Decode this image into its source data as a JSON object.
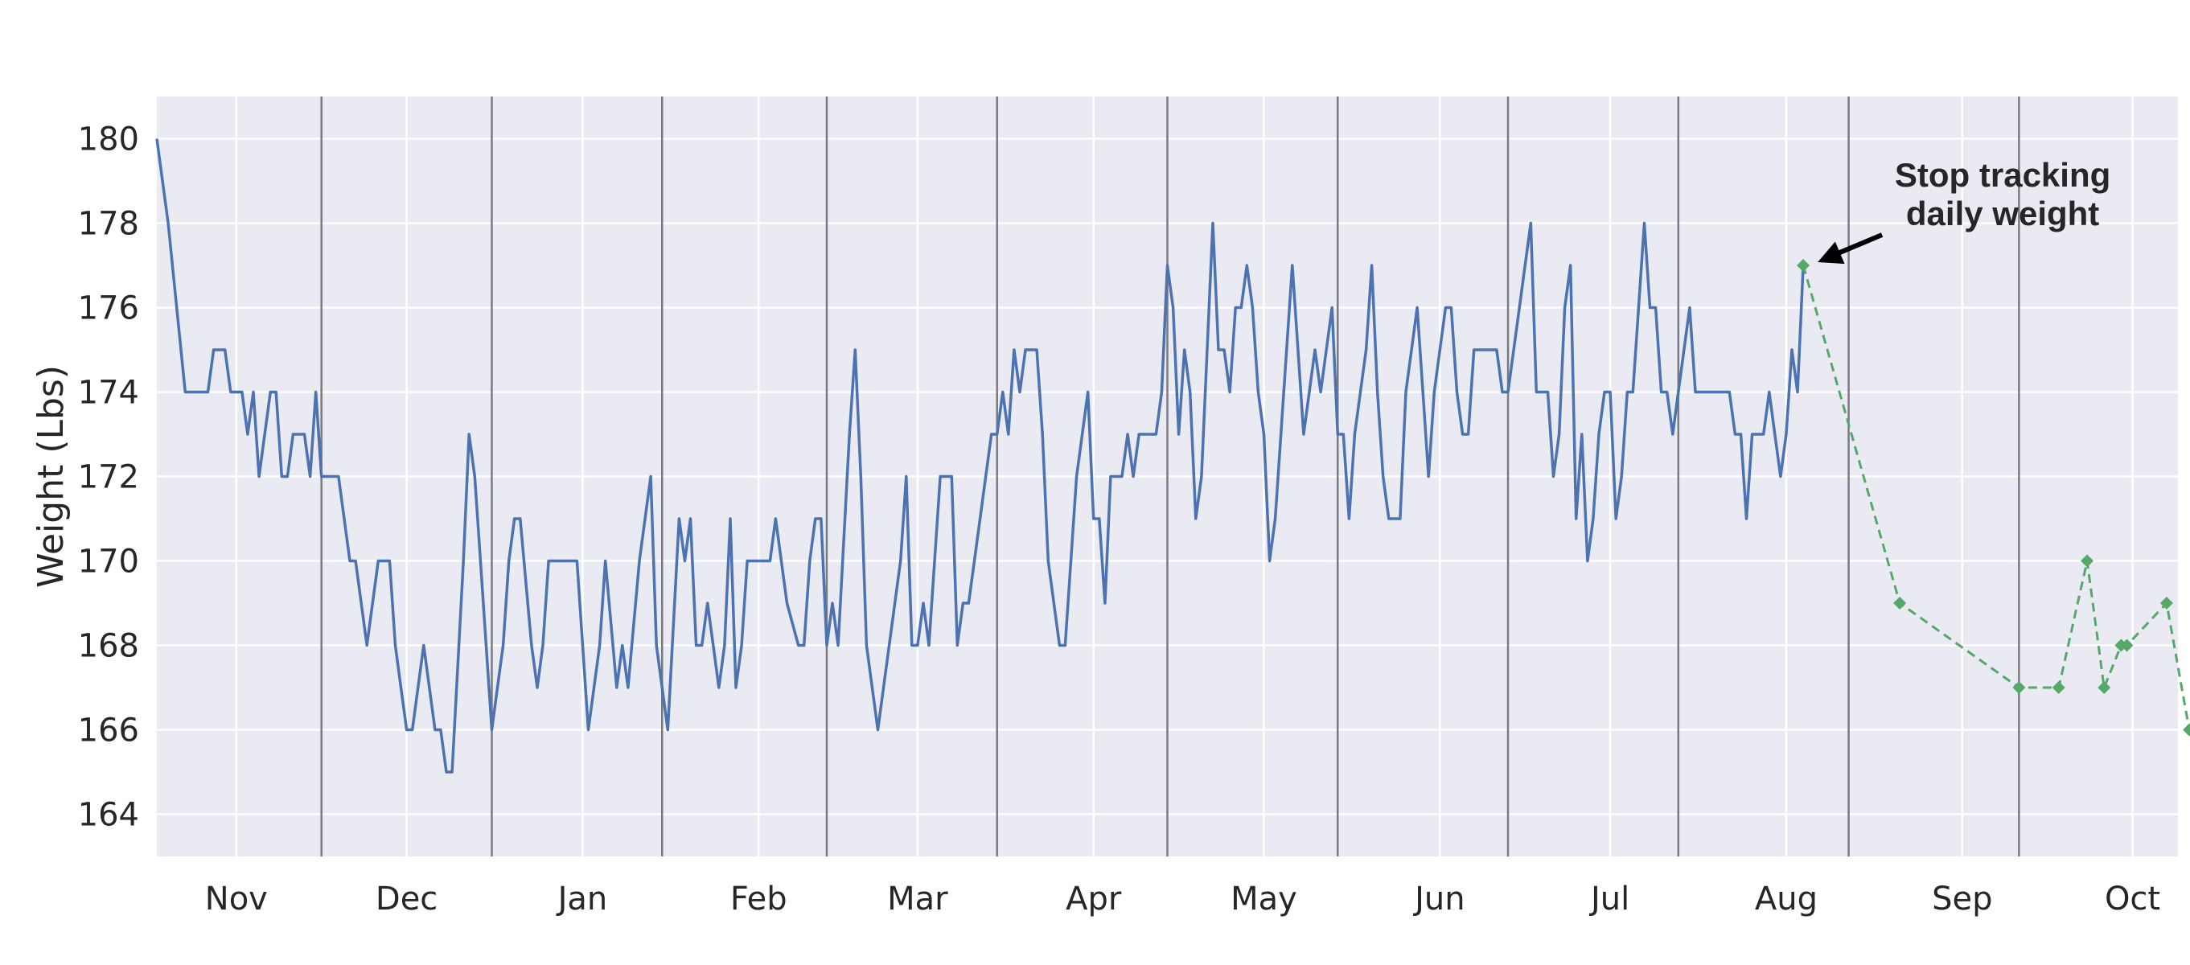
{
  "chart_data": {
    "type": "line",
    "ylabel": "Weight (Lbs)",
    "xlabel": "",
    "title": "",
    "xlim": [
      "2017-10-18",
      "2018-10-09"
    ],
    "ylim": [
      163,
      181
    ],
    "yticks": [
      164,
      166,
      168,
      170,
      172,
      174,
      176,
      178,
      180
    ],
    "xticks": [
      {
        "label": "Nov",
        "date": "2017-11-01"
      },
      {
        "label": "Dec",
        "date": "2017-12-01"
      },
      {
        "label": "Jan",
        "date": "2018-01-01"
      },
      {
        "label": "Feb",
        "date": "2018-02-01"
      },
      {
        "label": "Mar",
        "date": "2018-03-01"
      },
      {
        "label": "Apr",
        "date": "2018-04-01"
      },
      {
        "label": "May",
        "date": "2018-05-01"
      },
      {
        "label": "Jun",
        "date": "2018-06-01"
      },
      {
        "label": "Jul",
        "date": "2018-07-01"
      },
      {
        "label": "Aug",
        "date": "2018-08-01"
      },
      {
        "label": "Sep",
        "date": "2018-09-01"
      },
      {
        "label": "Oct",
        "date": "2018-10-01"
      }
    ],
    "vlines": [
      "2017-11-16",
      "2017-12-16",
      "2018-01-15",
      "2018-02-13",
      "2018-03-15",
      "2018-04-14",
      "2018-05-14",
      "2018-06-13",
      "2018-07-13",
      "2018-08-12",
      "2018-09-11"
    ],
    "grid": true,
    "series": [
      {
        "style": "solid",
        "color": "#4c72b0",
        "points": [
          [
            "2017-10-18",
            180
          ],
          [
            "2017-10-20",
            178
          ],
          [
            "2017-10-23",
            174
          ],
          [
            "2017-10-25",
            174
          ],
          [
            "2017-10-26",
            174
          ],
          [
            "2017-10-27",
            174
          ],
          [
            "2017-10-28",
            175
          ],
          [
            "2017-10-29",
            175
          ],
          [
            "2017-10-30",
            175
          ],
          [
            "2017-10-31",
            174
          ],
          [
            "2017-11-01",
            174
          ],
          [
            "2017-11-02",
            174
          ],
          [
            "2017-11-03",
            173
          ],
          [
            "2017-11-04",
            174
          ],
          [
            "2017-11-05",
            172
          ],
          [
            "2017-11-07",
            174
          ],
          [
            "2017-11-08",
            174
          ],
          [
            "2017-11-09",
            172
          ],
          [
            "2017-11-10",
            172
          ],
          [
            "2017-11-11",
            173
          ],
          [
            "2017-11-13",
            173
          ],
          [
            "2017-11-14",
            172
          ],
          [
            "2017-11-15",
            174
          ],
          [
            "2017-11-16",
            172
          ],
          [
            "2017-11-19",
            172
          ],
          [
            "2017-11-21",
            170
          ],
          [
            "2017-11-22",
            170
          ],
          [
            "2017-11-24",
            168
          ],
          [
            "2017-11-26",
            170
          ],
          [
            "2017-11-28",
            170
          ],
          [
            "2017-11-29",
            168
          ],
          [
            "2017-11-30",
            167
          ],
          [
            "2017-12-01",
            166
          ],
          [
            "2017-12-02",
            166
          ],
          [
            "2017-12-04",
            168
          ],
          [
            "2017-12-06",
            166
          ],
          [
            "2017-12-07",
            166
          ],
          [
            "2017-12-08",
            165
          ],
          [
            "2017-12-09",
            165
          ],
          [
            "2017-12-11",
            170
          ],
          [
            "2017-12-12",
            173
          ],
          [
            "2017-12-13",
            172
          ],
          [
            "2017-12-14",
            170
          ],
          [
            "2017-12-16",
            166
          ],
          [
            "2017-12-17",
            167
          ],
          [
            "2017-12-18",
            168
          ],
          [
            "2017-12-19",
            170
          ],
          [
            "2017-12-20",
            171
          ],
          [
            "2017-12-21",
            171
          ],
          [
            "2017-12-23",
            168
          ],
          [
            "2017-12-24",
            167
          ],
          [
            "2017-12-25",
            168
          ],
          [
            "2017-12-26",
            170
          ],
          [
            "2017-12-28",
            170
          ],
          [
            "2017-12-30",
            170
          ],
          [
            "2017-12-31",
            170
          ],
          [
            "2018-01-02",
            166
          ],
          [
            "2018-01-04",
            168
          ],
          [
            "2018-01-05",
            170
          ],
          [
            "2018-01-07",
            167
          ],
          [
            "2018-01-08",
            168
          ],
          [
            "2018-01-09",
            167
          ],
          [
            "2018-01-11",
            170
          ],
          [
            "2018-01-13",
            172
          ],
          [
            "2018-01-14",
            168
          ],
          [
            "2018-01-16",
            166
          ],
          [
            "2018-01-18",
            171
          ],
          [
            "2018-01-19",
            170
          ],
          [
            "2018-01-20",
            171
          ],
          [
            "2018-01-21",
            168
          ],
          [
            "2018-01-22",
            168
          ],
          [
            "2018-01-23",
            169
          ],
          [
            "2018-01-24",
            168
          ],
          [
            "2018-01-25",
            167
          ],
          [
            "2018-01-26",
            168
          ],
          [
            "2018-01-27",
            171
          ],
          [
            "2018-01-28",
            167
          ],
          [
            "2018-01-29",
            168
          ],
          [
            "2018-01-30",
            170
          ],
          [
            "2018-01-31",
            170
          ],
          [
            "2018-02-01",
            170
          ],
          [
            "2018-02-03",
            170
          ],
          [
            "2018-02-04",
            171
          ],
          [
            "2018-02-06",
            169
          ],
          [
            "2018-02-08",
            168
          ],
          [
            "2018-02-09",
            168
          ],
          [
            "2018-02-10",
            170
          ],
          [
            "2018-02-11",
            171
          ],
          [
            "2018-02-12",
            171
          ],
          [
            "2018-02-13",
            168
          ],
          [
            "2018-02-14",
            169
          ],
          [
            "2018-02-15",
            168
          ],
          [
            "2018-02-17",
            173
          ],
          [
            "2018-02-18",
            175
          ],
          [
            "2018-02-19",
            172
          ],
          [
            "2018-02-20",
            168
          ],
          [
            "2018-02-22",
            166
          ],
          [
            "2018-02-24",
            168
          ],
          [
            "2018-02-26",
            170
          ],
          [
            "2018-02-27",
            172
          ],
          [
            "2018-02-28",
            168
          ],
          [
            "2018-03-01",
            168
          ],
          [
            "2018-03-02",
            169
          ],
          [
            "2018-03-03",
            168
          ],
          [
            "2018-03-05",
            172
          ],
          [
            "2018-03-07",
            172
          ],
          [
            "2018-03-08",
            168
          ],
          [
            "2018-03-09",
            169
          ],
          [
            "2018-03-10",
            169
          ],
          [
            "2018-03-12",
            171
          ],
          [
            "2018-03-14",
            173
          ],
          [
            "2018-03-15",
            173
          ],
          [
            "2018-03-16",
            174
          ],
          [
            "2018-03-17",
            173
          ],
          [
            "2018-03-18",
            175
          ],
          [
            "2018-03-19",
            174
          ],
          [
            "2018-03-20",
            175
          ],
          [
            "2018-03-21",
            175
          ],
          [
            "2018-03-22",
            175
          ],
          [
            "2018-03-23",
            173
          ],
          [
            "2018-03-24",
            170
          ],
          [
            "2018-03-26",
            168
          ],
          [
            "2018-03-27",
            168
          ],
          [
            "2018-03-29",
            172
          ],
          [
            "2018-03-31",
            174
          ],
          [
            "2018-04-01",
            171
          ],
          [
            "2018-04-02",
            171
          ],
          [
            "2018-04-03",
            169
          ],
          [
            "2018-04-04",
            172
          ],
          [
            "2018-04-05",
            172
          ],
          [
            "2018-04-06",
            172
          ],
          [
            "2018-04-07",
            173
          ],
          [
            "2018-04-08",
            172
          ],
          [
            "2018-04-09",
            173
          ],
          [
            "2018-04-10",
            173
          ],
          [
            "2018-04-12",
            173
          ],
          [
            "2018-04-13",
            174
          ],
          [
            "2018-04-14",
            177
          ],
          [
            "2018-04-15",
            176
          ],
          [
            "2018-04-16",
            173
          ],
          [
            "2018-04-17",
            175
          ],
          [
            "2018-04-18",
            174
          ],
          [
            "2018-04-19",
            171
          ],
          [
            "2018-04-20",
            172
          ],
          [
            "2018-04-22",
            178
          ],
          [
            "2018-04-23",
            175
          ],
          [
            "2018-04-24",
            175
          ],
          [
            "2018-04-25",
            174
          ],
          [
            "2018-04-26",
            176
          ],
          [
            "2018-04-27",
            176
          ],
          [
            "2018-04-28",
            177
          ],
          [
            "2018-04-29",
            176
          ],
          [
            "2018-04-30",
            174
          ],
          [
            "2018-05-01",
            173
          ],
          [
            "2018-05-02",
            170
          ],
          [
            "2018-05-03",
            171
          ],
          [
            "2018-05-06",
            177
          ],
          [
            "2018-05-07",
            175
          ],
          [
            "2018-05-08",
            173
          ],
          [
            "2018-05-10",
            175
          ],
          [
            "2018-05-11",
            174
          ],
          [
            "2018-05-13",
            176
          ],
          [
            "2018-05-14",
            173
          ],
          [
            "2018-05-15",
            173
          ],
          [
            "2018-05-16",
            171
          ],
          [
            "2018-05-17",
            173
          ],
          [
            "2018-05-19",
            175
          ],
          [
            "2018-05-20",
            177
          ],
          [
            "2018-05-21",
            174
          ],
          [
            "2018-05-22",
            172
          ],
          [
            "2018-05-23",
            171
          ],
          [
            "2018-05-24",
            171
          ],
          [
            "2018-05-25",
            171
          ],
          [
            "2018-05-26",
            174
          ],
          [
            "2018-05-28",
            176
          ],
          [
            "2018-05-29",
            174
          ],
          [
            "2018-05-30",
            172
          ],
          [
            "2018-05-31",
            174
          ],
          [
            "2018-06-02",
            176
          ],
          [
            "2018-06-03",
            176
          ],
          [
            "2018-06-04",
            174
          ],
          [
            "2018-06-05",
            173
          ],
          [
            "2018-06-06",
            173
          ],
          [
            "2018-06-07",
            175
          ],
          [
            "2018-06-09",
            175
          ],
          [
            "2018-06-11",
            175
          ],
          [
            "2018-06-12",
            174
          ],
          [
            "2018-06-13",
            174
          ],
          [
            "2018-06-15",
            176
          ],
          [
            "2018-06-17",
            178
          ],
          [
            "2018-06-18",
            174
          ],
          [
            "2018-06-20",
            174
          ],
          [
            "2018-06-21",
            172
          ],
          [
            "2018-06-22",
            173
          ],
          [
            "2018-06-23",
            176
          ],
          [
            "2018-06-24",
            177
          ],
          [
            "2018-06-25",
            171
          ],
          [
            "2018-06-26",
            173
          ],
          [
            "2018-06-27",
            170
          ],
          [
            "2018-06-28",
            171
          ],
          [
            "2018-06-29",
            173
          ],
          [
            "2018-06-30",
            174
          ],
          [
            "2018-07-01",
            174
          ],
          [
            "2018-07-02",
            171
          ],
          [
            "2018-07-03",
            172
          ],
          [
            "2018-07-04",
            174
          ],
          [
            "2018-07-05",
            174
          ],
          [
            "2018-07-07",
            178
          ],
          [
            "2018-07-08",
            176
          ],
          [
            "2018-07-09",
            176
          ],
          [
            "2018-07-10",
            174
          ],
          [
            "2018-07-11",
            174
          ],
          [
            "2018-07-12",
            173
          ],
          [
            "2018-07-13",
            174
          ],
          [
            "2018-07-15",
            176
          ],
          [
            "2018-07-16",
            174
          ],
          [
            "2018-07-18",
            174
          ],
          [
            "2018-07-20",
            174
          ],
          [
            "2018-07-22",
            174
          ],
          [
            "2018-07-23",
            173
          ],
          [
            "2018-07-24",
            173
          ],
          [
            "2018-07-25",
            171
          ],
          [
            "2018-07-26",
            173
          ],
          [
            "2018-07-28",
            173
          ],
          [
            "2018-07-29",
            174
          ],
          [
            "2018-07-30",
            173
          ],
          [
            "2018-07-31",
            172
          ],
          [
            "2018-08-01",
            173
          ],
          [
            "2018-08-02",
            175
          ],
          [
            "2018-08-03",
            174
          ],
          [
            "2018-08-04",
            177
          ]
        ]
      },
      {
        "style": "dashed",
        "marker": "diamond",
        "color": "#55a868",
        "points": [
          [
            "2018-08-04",
            177
          ],
          [
            "2018-08-21",
            169
          ],
          [
            "2018-09-11",
            167
          ],
          [
            "2018-09-18",
            167
          ],
          [
            "2018-09-23",
            170
          ],
          [
            "2018-09-26",
            167
          ],
          [
            "2018-09-29",
            168
          ],
          [
            "2018-09-30",
            168
          ],
          [
            "2018-10-07",
            169
          ],
          [
            "2018-10-11",
            166
          ]
        ]
      }
    ],
    "annotation": {
      "lines": [
        "Stop tracking",
        "daily weight"
      ],
      "target": [
        "2018-08-04",
        177
      ]
    }
  }
}
